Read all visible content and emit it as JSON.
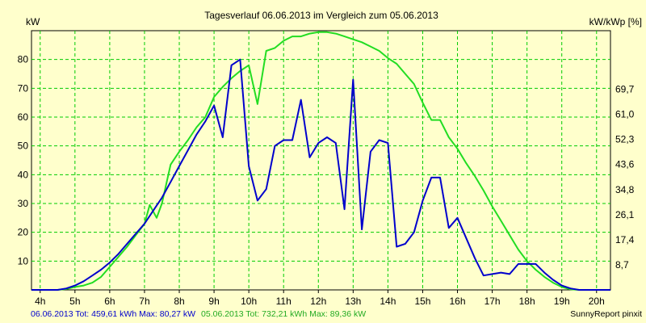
{
  "chart_data": {
    "type": "line",
    "title": "Tagesverlauf 06.06.2013 im Vergleich zum 05.06.2013",
    "ylabel_left": "kW",
    "ylabel_right": "kW/kWp [%]",
    "xlim": [
      3.75,
      20.4
    ],
    "ylim": [
      0,
      90
    ],
    "y_ticks": [
      10,
      20,
      30,
      40,
      50,
      60,
      70,
      80
    ],
    "y_tick_labels": [
      "10",
      "20",
      "30",
      "40",
      "50",
      "60",
      "70",
      "80"
    ],
    "right_ticks": [
      {
        "at": 8.7,
        "label": "8,7"
      },
      {
        "at": 17.4,
        "label": "17,4"
      },
      {
        "at": 26.1,
        "label": "26,1"
      },
      {
        "at": 34.8,
        "label": "34,8"
      },
      {
        "at": 43.6,
        "label": "43,6"
      },
      {
        "at": 52.3,
        "label": "52,3"
      },
      {
        "at": 61.0,
        "label": "61,0"
      },
      {
        "at": 69.7,
        "label": "69,7"
      }
    ],
    "x_ticks": [
      4,
      5,
      6,
      7,
      8,
      9,
      10,
      11,
      12,
      13,
      14,
      15,
      16,
      17,
      18,
      19,
      20
    ],
    "x_tick_labels": [
      "4h",
      "5h",
      "6h",
      "7h",
      "8h",
      "9h",
      "10h",
      "11h",
      "12h",
      "13h",
      "14h",
      "15h",
      "16h",
      "17h",
      "18h",
      "19h",
      "20h"
    ],
    "grid": true,
    "series": [
      {
        "name": "06.06.2013",
        "color": "#0000cc",
        "x": [
          3.75,
          4.5,
          4.75,
          5.0,
          5.25,
          5.5,
          5.75,
          6.0,
          6.25,
          6.5,
          6.75,
          7.0,
          7.25,
          7.5,
          7.75,
          8.0,
          8.25,
          8.5,
          8.75,
          9.0,
          9.25,
          9.5,
          9.75,
          10.0,
          10.25,
          10.5,
          10.75,
          11.0,
          11.25,
          11.5,
          11.75,
          12.0,
          12.25,
          12.5,
          12.75,
          13.0,
          13.25,
          13.5,
          13.75,
          14.0,
          14.25,
          14.5,
          14.75,
          15.0,
          15.25,
          15.5,
          15.75,
          16.0,
          16.25,
          16.5,
          16.75,
          17.0,
          17.25,
          17.5,
          17.75,
          18.0,
          18.25,
          18.5,
          18.75,
          19.0,
          19.25,
          19.5,
          19.75,
          20.0,
          20.4
        ],
        "values": [
          0,
          0,
          0.5,
          1.5,
          3,
          5,
          7,
          9.5,
          12.5,
          16,
          19.5,
          23,
          27.5,
          32,
          37.5,
          43,
          48.5,
          54,
          58.5,
          64,
          53,
          78,
          80,
          43,
          31,
          35,
          50,
          52,
          52,
          66,
          46,
          51,
          53,
          51,
          28,
          73,
          21,
          48,
          52,
          51,
          15,
          16,
          20,
          31,
          39,
          39,
          21.5,
          25,
          18,
          11,
          5,
          5.5,
          6,
          5.5,
          9,
          9,
          9,
          6,
          3.5,
          1.5,
          0.5,
          0,
          0,
          0,
          0
        ]
      },
      {
        "name": "05.06.2013",
        "color": "#22dd22",
        "x": [
          3.75,
          4.5,
          4.75,
          5.0,
          5.25,
          5.5,
          5.75,
          6.0,
          6.25,
          6.5,
          6.75,
          7.0,
          7.15,
          7.35,
          7.5,
          7.75,
          8.0,
          8.25,
          8.5,
          8.75,
          9.0,
          9.25,
          9.5,
          9.75,
          10.0,
          10.25,
          10.5,
          10.75,
          11.0,
          11.25,
          11.5,
          11.75,
          12.0,
          12.25,
          12.5,
          12.75,
          13.0,
          13.25,
          13.5,
          13.75,
          14.0,
          14.25,
          14.5,
          14.75,
          15.0,
          15.25,
          15.5,
          15.75,
          16.0,
          16.25,
          16.5,
          16.75,
          17.0,
          17.25,
          17.5,
          17.75,
          18.0,
          18.25,
          18.5,
          18.75,
          19.0,
          19.25,
          19.5,
          19.75,
          20.0,
          20.4
        ],
        "values": [
          0,
          0,
          0.3,
          1,
          1.5,
          2.5,
          4.5,
          8,
          11.5,
          15,
          19,
          23,
          29.5,
          25,
          30,
          43.5,
          48,
          52,
          56.5,
          60,
          67,
          70.5,
          73.5,
          76,
          78,
          64.5,
          83,
          84,
          86.5,
          88,
          88,
          89,
          89.5,
          89.5,
          89,
          88,
          87,
          86,
          84.5,
          83,
          80.5,
          78.5,
          75,
          71.5,
          65,
          59,
          59,
          53,
          49,
          44,
          39.5,
          34.5,
          29,
          24,
          19,
          14,
          10,
          7,
          4.5,
          2.5,
          1,
          0.2,
          0,
          0,
          0,
          0
        ]
      }
    ]
  },
  "footer": {
    "legend_1_text": "06.06.2013 Tot: 459,61 kWh Max: 80,27 kW",
    "legend_2_text": "05.06.2013 Tot: 732,21 kWh Max: 89,36 kW",
    "brand": "SunnyReport pinxit"
  }
}
